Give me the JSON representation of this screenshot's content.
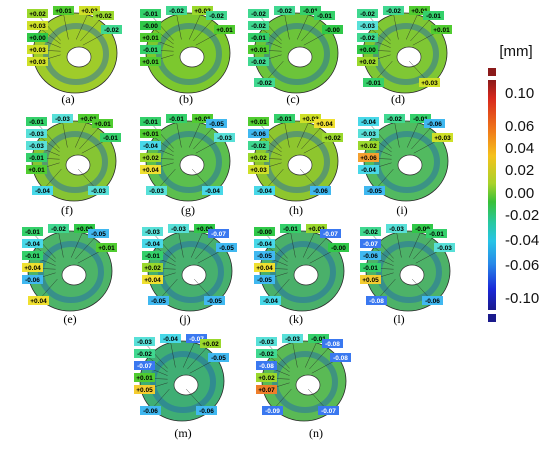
{
  "colorbar": {
    "unit": "[mm]",
    "ticks": [
      "0.10",
      "0.06",
      "0.04",
      "0.02",
      "0.00",
      "-0.02",
      "-0.04",
      "-0.06",
      "-0.10"
    ]
  },
  "panels": [
    {
      "label": "(a)",
      "tint": "#9fcc2a",
      "tags": [
        "+0.02",
        "+0.01",
        "+0.03",
        "+0.02",
        "+0.03",
        "+0.00",
        "-0.02",
        "+0.03",
        "+0.03"
      ]
    },
    {
      "label": "(b)",
      "tint": "#7cc82e",
      "tags": [
        "-0.01",
        "-0.02",
        "+0.02",
        "-0.02",
        "-0.00",
        "+0.01",
        "+0.01",
        "-0.01",
        "+0.01"
      ]
    },
    {
      "label": "(c)",
      "tint": "#6cc43a",
      "tags": [
        "-0.02",
        "-0.02",
        "-0.01",
        "-0.01",
        "-0.02",
        "-0.01",
        "-0.00",
        "+0.01",
        "-0.02",
        "-0.02"
      ]
    },
    {
      "label": "(d)",
      "tint": "#7fc734",
      "tags": [
        "-0.02",
        "-0.02",
        "+0.01",
        "-0.01",
        "-0.03",
        "-0.02",
        "+0.01",
        "+0.00",
        "+0.02",
        "-0.01",
        "+0.03"
      ]
    },
    {
      "label": "(f)",
      "tint": "#86c533",
      "tags": [
        "-0.01",
        "-0.03",
        "+0.01",
        "+0.01",
        "-0.03",
        "-0.03",
        "-0.01",
        "-0.01",
        "+0.01",
        "-0.04",
        "-0.03"
      ]
    },
    {
      "label": "(g)",
      "tint": "#5cbf4e",
      "tags": [
        "-0.01",
        "-0.01",
        "+0.01",
        "-0.05",
        "+0.01",
        "-0.04",
        "-0.03",
        "+0.02",
        "+0.04",
        "-0.03",
        "-0.04"
      ]
    },
    {
      "label": "(h)",
      "tint": "#8ec62e",
      "tags": [
        "+0.01",
        "-0.01",
        "+0.03",
        "+0.04",
        "-0.06",
        "-0.02",
        "+0.02",
        "+0.02",
        "+0.03",
        "-0.04",
        "-0.06"
      ]
    },
    {
      "label": "(i)",
      "tint": "#52ba60",
      "tags": [
        "-0.04",
        "-0.02",
        "-0.01",
        "-0.06",
        "-0.03",
        "+0.02",
        "+0.03",
        "+0.06",
        "-0.04",
        "-0.05"
      ]
    },
    {
      "label": "(e)",
      "tint": "#4db468",
      "tags": [
        "-0.01",
        "-0.02",
        "+0.00",
        "-0.05",
        "-0.04",
        "-0.01",
        "+0.01",
        "+0.04",
        "-0.06",
        "+0.04"
      ]
    },
    {
      "label": "(j)",
      "tint": "#47b06e",
      "tags": [
        "-0.03",
        "-0.03",
        "+0.00",
        "-0.07",
        "-0.04",
        "-0.01",
        "-0.05",
        "+0.02",
        "+0.04",
        "-0.05",
        "-0.05"
      ]
    },
    {
      "label": "(k)",
      "tint": "#4ab06a",
      "tags": [
        "-0.00",
        "-0.01",
        "+0.02",
        "-0.07",
        "-0.04",
        "-0.05",
        "-0.00",
        "+0.04",
        "-0.05",
        "-0.04"
      ]
    },
    {
      "label": "(l)",
      "tint": "#4db268",
      "tags": [
        "-0.02",
        "-0.03",
        "-0.00",
        "-0.01",
        "-0.07",
        "-0.06",
        "-0.03",
        "-0.01",
        "+0.05",
        "-0.08",
        "-0.06"
      ]
    },
    {
      "label": "(m)",
      "tint": "#3fae74",
      "tags": [
        "-0.03",
        "-0.04",
        "-0.07",
        "+0.02",
        "-0.02",
        "-0.07",
        "-0.05",
        "+0.01",
        "+0.05",
        "-0.06",
        "-0.06"
      ]
    },
    {
      "label": "(n)",
      "tint": "#5aba55",
      "tags": [
        "-0.03",
        "-0.03",
        "-0.01",
        "-0.08",
        "-0.02",
        "-0.08",
        "-0.08",
        "+0.02",
        "+0.07",
        "-0.09",
        "-0.07"
      ]
    }
  ]
}
